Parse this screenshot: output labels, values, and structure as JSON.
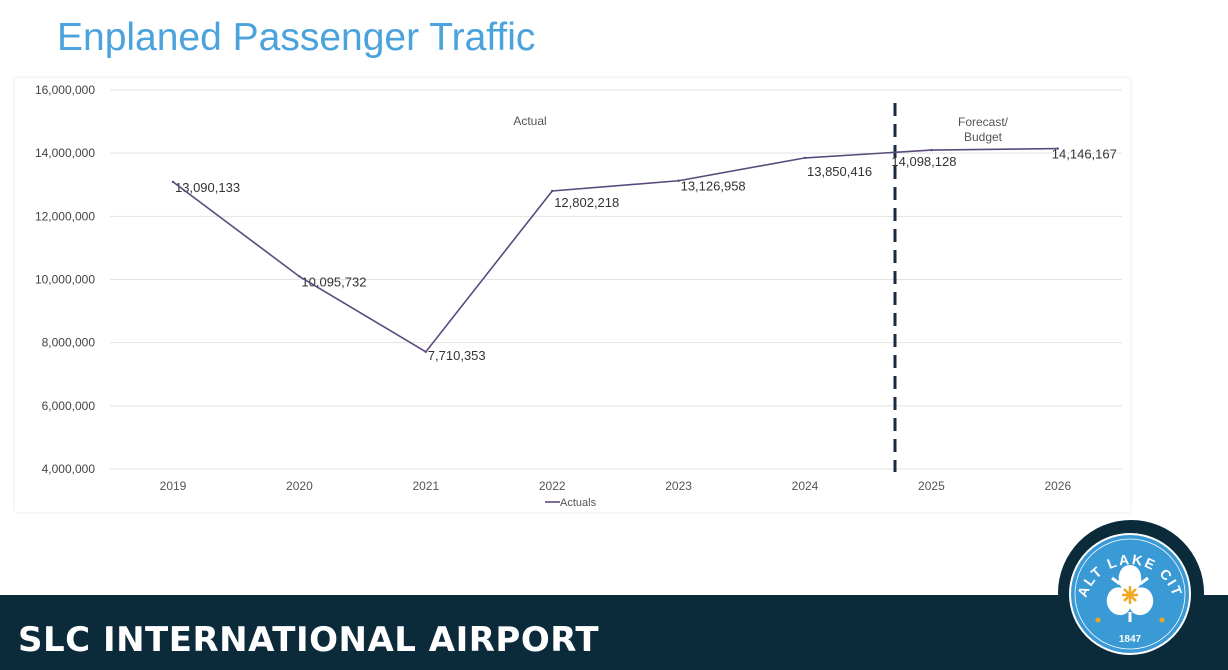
{
  "slide": {
    "title": "Enplaned Passenger Traffic",
    "footer": "SLC INTERNATIONAL AIRPORT"
  },
  "logo": {
    "top_text": "SALT LAKE CITY",
    "year": "1847"
  },
  "colors": {
    "title": "#4aa3dc",
    "line": "#5b4a7e",
    "footer": "#0b2a3a",
    "logo": "#3a9ad6",
    "divider": "#1a2a40"
  },
  "chart_data": {
    "type": "line",
    "title": "",
    "xlabel": "",
    "ylabel": "",
    "categories": [
      "2019",
      "2020",
      "2021",
      "2022",
      "2023",
      "2024",
      "2025",
      "2026"
    ],
    "series": [
      {
        "name": "Actuals",
        "values": [
          13090133,
          10095732,
          7710353,
          12802218,
          13126958,
          13850416,
          14098128,
          14146167
        ]
      }
    ],
    "data_labels": [
      "13,090,133",
      "10,095,732",
      "7,710,353",
      "12,802,218",
      "13,126,958",
      "13,850,416",
      "14,098,128",
      "14,146,167"
    ],
    "ylim": [
      4000000,
      16000000
    ],
    "yticks": [
      "4,000,000",
      "6,000,000",
      "8,000,000",
      "10,000,000",
      "12,000,000",
      "14,000,000",
      "16,000,000"
    ],
    "grid": true,
    "legend": "bottom",
    "annotations": {
      "actual": "Actual",
      "forecast_line1": "Forecast/",
      "forecast_line2": "Budget"
    }
  }
}
